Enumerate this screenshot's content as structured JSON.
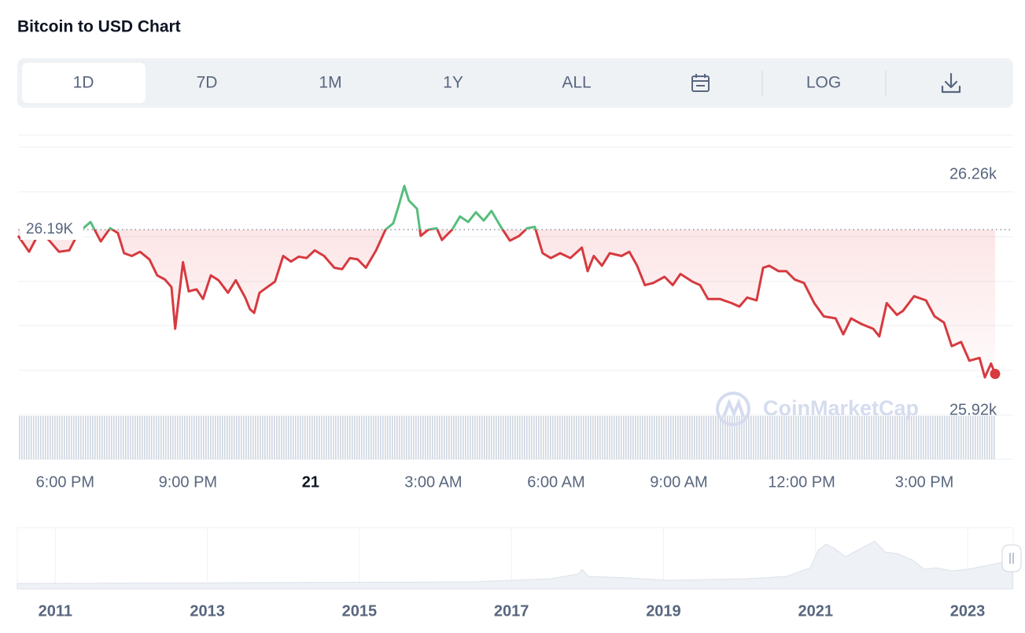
{
  "header": {
    "title": "Bitcoin to USD Chart"
  },
  "tabs": [
    "1D",
    "7D",
    "1M",
    "1Y",
    "ALL"
  ],
  "log_button": "LOG",
  "watermark": "CoinMarketCap",
  "chart_data": {
    "type": "line",
    "x": [
      16.85,
      17.12,
      17.37,
      17.6,
      17.85,
      18.1,
      18.33,
      18.62,
      18.87,
      19.1,
      19.29,
      19.44,
      19.63,
      19.83,
      20.06,
      20.25,
      20.44,
      20.6,
      20.69,
      20.88,
      21.02,
      21.21,
      21.37,
      21.56,
      21.75,
      21.98,
      22.17,
      22.4,
      22.52,
      22.62,
      22.75,
      22.94,
      23.13,
      23.33,
      23.52,
      23.71,
      23.9,
      24.1,
      24.33,
      24.58,
      24.77,
      24.96,
      25.15,
      25.35,
      25.6,
      25.83,
      26.02,
      26.15,
      26.29,
      26.4,
      26.6,
      26.69,
      26.88,
      27.08,
      27.21,
      27.46,
      27.65,
      27.85,
      28.04,
      28.23,
      28.42,
      28.65,
      28.87,
      29.1,
      29.29,
      29.48,
      29.67,
      29.87,
      30.1,
      30.35,
      30.63,
      30.77,
      30.92,
      31.12,
      31.31,
      31.6,
      31.79,
      31.98,
      32.17,
      32.37,
      32.65,
      32.85,
      33.04,
      33.33,
      33.52,
      33.71,
      34.0,
      34.29,
      34.48,
      34.67,
      34.9,
      35.06,
      35.21,
      35.44,
      35.63,
      35.83,
      36.06,
      36.31,
      36.54,
      36.83,
      37.02,
      37.21,
      37.46,
      37.75,
      37.9,
      38.08,
      38.33,
      38.48,
      38.75,
      39.04,
      39.25,
      39.48,
      39.67,
      39.9,
      40.1,
      40.35,
      40.48,
      40.63,
      40.73
    ],
    "values": [
      26181,
      26158,
      26186,
      26175,
      26158,
      26160,
      26186,
      26201,
      26173,
      26192,
      26185,
      26156,
      26152,
      26158,
      26147,
      26124,
      26118,
      26107,
      26047,
      26143,
      26101,
      26104,
      26090,
      26124,
      26117,
      26099,
      26117,
      26092,
      26075,
      26070,
      26099,
      26107,
      26115,
      26152,
      26144,
      26151,
      26149,
      26160,
      26152,
      26135,
      26133,
      26149,
      26147,
      26135,
      26160,
      26190,
      26199,
      26224,
      26253,
      26232,
      26220,
      26181,
      26190,
      26192,
      26175,
      26190,
      26209,
      26201,
      26215,
      26203,
      26217,
      26194,
      26174,
      26181,
      26192,
      26194,
      26156,
      26149,
      26156,
      26149,
      26164,
      26130,
      26152,
      26138,
      26156,
      26152,
      26158,
      26138,
      26110,
      26113,
      26122,
      26110,
      26126,
      26115,
      26110,
      26090,
      26090,
      26084,
      26079,
      26092,
      26088,
      26135,
      26138,
      26130,
      26130,
      26118,
      26113,
      26084,
      26065,
      26062,
      26039,
      26062,
      26054,
      26047,
      26036,
      26084,
      26067,
      26073,
      26094,
      26088,
      26065,
      26056,
      26022,
      26028,
      26001,
      26005,
      25977,
      25997,
      25982
    ],
    "colors": {
      "above": "#58bd7d",
      "below": "#d63a3f"
    },
    "reference": {
      "value": 26190,
      "label": "26.19K"
    },
    "xlim": [
      16.85,
      40.73
    ],
    "xticks": [
      {
        "value": 18,
        "label": "6:00 PM"
      },
      {
        "value": 21,
        "label": "9:00 PM"
      },
      {
        "value": 24,
        "label": "21"
      },
      {
        "value": 27,
        "label": "3:00 AM"
      },
      {
        "value": 30,
        "label": "6:00 AM"
      },
      {
        "value": 33,
        "label": "9:00 AM"
      },
      {
        "value": 36,
        "label": "12:00 PM"
      },
      {
        "value": 39,
        "label": "3:00 PM"
      }
    ],
    "ylim": [
      25859,
      26326
    ],
    "yticks": [
      {
        "value": 25920,
        "label": "25.92k"
      },
      {
        "value": 26260,
        "label": "26.26k"
      }
    ]
  },
  "navigator": {
    "xlim": [
      2010.5,
      2023.6
    ],
    "xticks": [
      2011,
      2013,
      2015,
      2017,
      2019,
      2021,
      2023
    ]
  }
}
